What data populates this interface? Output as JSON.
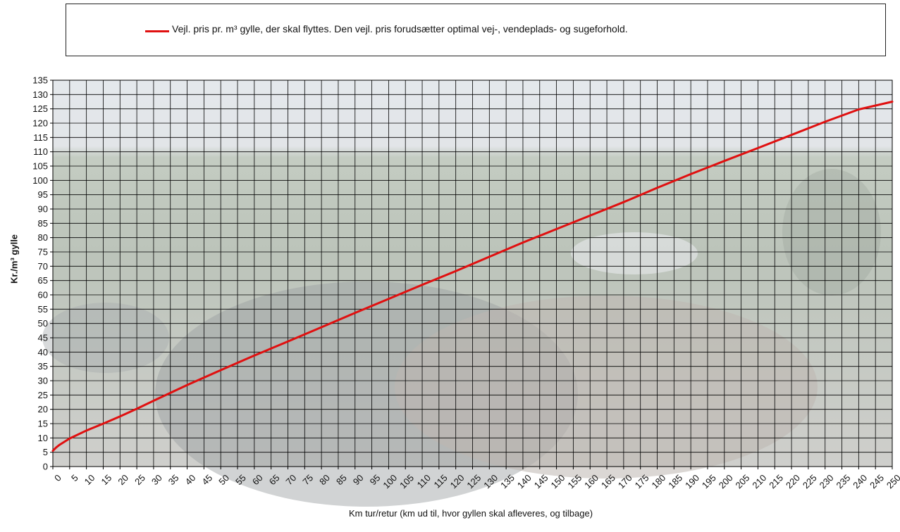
{
  "chart_data": {
    "type": "line",
    "legend_label": "Vejl. pris pr. m³ gylle, der skal flyttes. Den vejl. pris forudsætter optimal vej-, vendeplads- og sugeforhold.",
    "legend_position": "top",
    "xlabel": "Km tur/retur (km ud til, hvor gyllen skal afleveres, og tilbage)",
    "ylabel": "Kr./m³ gylle",
    "xlim": [
      0,
      250
    ],
    "ylim": [
      0,
      135
    ],
    "x_ticks": [
      "0",
      "5",
      "10",
      "15",
      "20",
      "25",
      "30",
      "35",
      "40",
      "45",
      "50",
      "55",
      "60",
      "65",
      "70",
      "75",
      "80",
      "85",
      "90",
      "95",
      "100",
      "105",
      "110",
      "115",
      "120",
      "125",
      "130",
      "135",
      "140",
      "145",
      "150",
      "155",
      "160",
      "165",
      "170",
      "175",
      "180",
      "185",
      "190",
      "195",
      "200",
      "205",
      "210",
      "215",
      "220",
      "225",
      "230",
      "235",
      "240",
      "245",
      "250"
    ],
    "y_ticks": [
      "0",
      "5",
      "10",
      "15",
      "20",
      "25",
      "30",
      "35",
      "40",
      "45",
      "50",
      "55",
      "60",
      "65",
      "70",
      "75",
      "80",
      "85",
      "90",
      "95",
      "100",
      "105",
      "110",
      "115",
      "120",
      "125",
      "130",
      "135"
    ],
    "grid": true,
    "series": [
      {
        "color": "#e01010",
        "x": [
          0,
          1,
          2,
          5,
          10,
          15,
          20,
          25,
          30,
          40,
          50,
          60,
          70,
          80,
          90,
          100,
          110,
          120,
          130,
          140,
          150,
          160,
          170,
          180,
          190,
          200,
          210,
          220,
          230,
          240,
          250
        ],
        "y": [
          5.5,
          6.7,
          7.6,
          9.8,
          12.6,
          15.0,
          17.5,
          20.2,
          23.0,
          28.5,
          33.7,
          38.8,
          43.7,
          48.7,
          53.7,
          58.6,
          63.5,
          68.3,
          73.3,
          78.3,
          83.0,
          87.7,
          92.4,
          97.4,
          102.2,
          106.8,
          111.3,
          115.9,
          120.5,
          124.8,
          127.5
        ]
      }
    ]
  }
}
